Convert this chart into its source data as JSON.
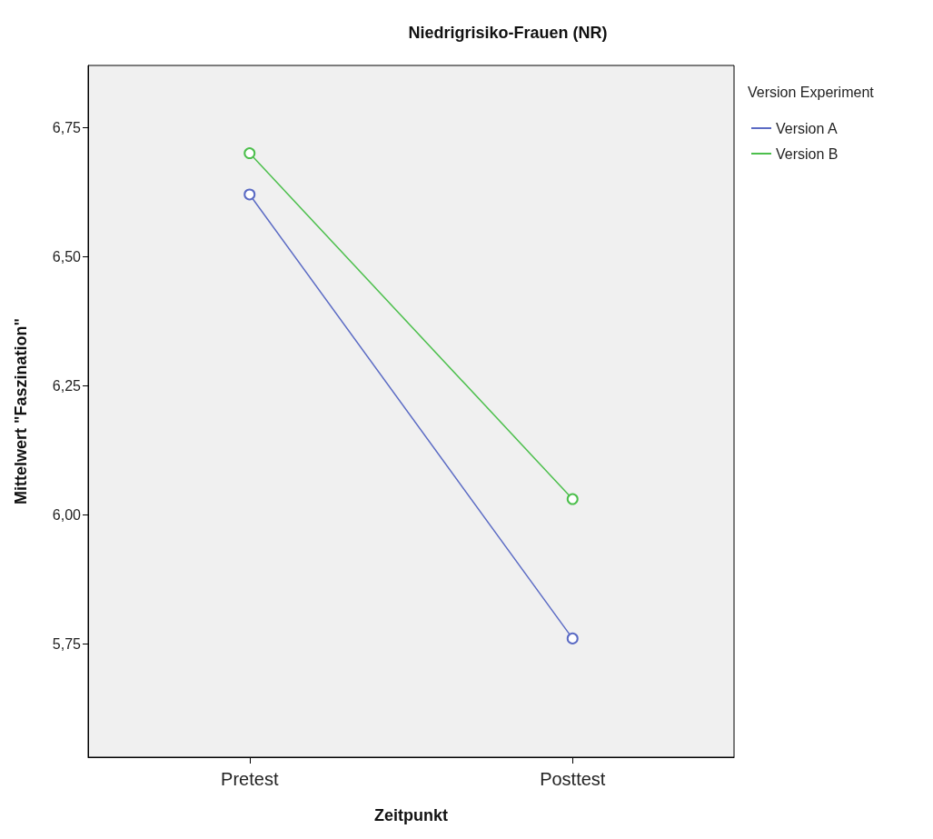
{
  "chart_data": {
    "type": "line",
    "title": "Niedrigrisiko-Frauen (NR)",
    "xlabel": "Zeitpunkt",
    "ylabel": "Mittelwert \"Faszination\"",
    "legend_title": "Version Experiment",
    "categories": [
      "Pretest",
      "Posttest"
    ],
    "series": [
      {
        "name": "Version A",
        "color": "#5b6bc4",
        "values": [
          6.62,
          5.76
        ]
      },
      {
        "name": "Version B",
        "color": "#4cbf4c",
        "values": [
          6.7,
          6.03
        ]
      }
    ],
    "ylim": [
      5.53,
      6.87
    ],
    "yticks": [
      {
        "value": 5.75,
        "label": "5,75"
      },
      {
        "value": 6.0,
        "label": "6,00"
      },
      {
        "value": 6.25,
        "label": "6,25"
      },
      {
        "value": 6.5,
        "label": "6,50"
      },
      {
        "value": 6.75,
        "label": "6,75"
      }
    ],
    "grid": false,
    "legend": "top right",
    "marker": "circle",
    "line_style": "solid"
  }
}
